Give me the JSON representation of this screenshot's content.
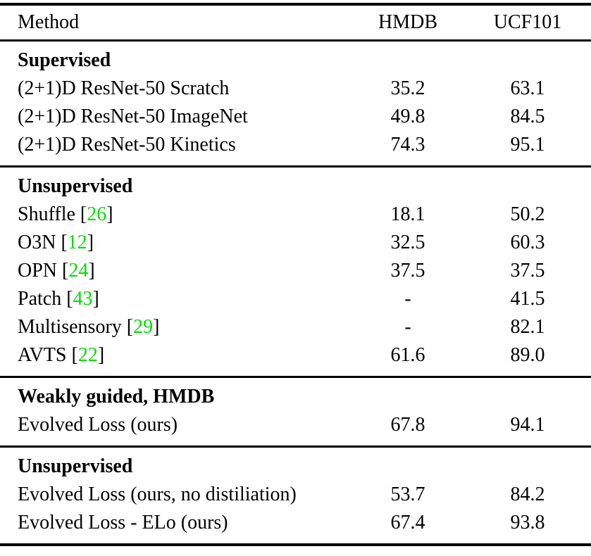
{
  "table": {
    "cite_open": " [",
    "cite_close": "]",
    "colors": {
      "citation_green": "#00E000",
      "text": "#000000",
      "background": "#FFFFFF"
    },
    "columns": {
      "method": "Method",
      "hmdb": "HMDB",
      "ucf": "UCF101"
    },
    "sections": [
      {
        "title": "Supervised",
        "rows": [
          {
            "method": "(2+1)D ResNet-50 Scratch",
            "hmdb": "35.2",
            "ucf": "63.1"
          },
          {
            "method": "(2+1)D ResNet-50 ImageNet",
            "hmdb": "49.8",
            "ucf": "84.5"
          },
          {
            "method": "(2+1)D ResNet-50 Kinetics",
            "hmdb": "74.3",
            "ucf": "95.1"
          }
        ]
      },
      {
        "title": "Unsupervised",
        "rows": [
          {
            "method": "Shuffle",
            "cite": "26",
            "hmdb": "18.1",
            "ucf": "50.2"
          },
          {
            "method": "O3N",
            "cite": "12",
            "hmdb": "32.5",
            "ucf": "60.3"
          },
          {
            "method": "OPN",
            "cite": "24",
            "hmdb": "37.5",
            "ucf": "37.5"
          },
          {
            "method": "Patch",
            "cite": "43",
            "hmdb": "-",
            "ucf": "41.5"
          },
          {
            "method": "Multisensory",
            "cite": "29",
            "hmdb": "-",
            "ucf": "82.1"
          },
          {
            "method": "AVTS",
            "cite": "22",
            "hmdb": "61.6",
            "ucf": "89.0"
          }
        ]
      },
      {
        "title": "Weakly guided, HMDB",
        "rows": [
          {
            "method": "Evolved Loss (ours)",
            "hmdb": "67.8",
            "ucf": "94.1"
          }
        ]
      },
      {
        "title": "Unsupervised",
        "rows": [
          {
            "method": "Evolved Loss (ours, no distiliation)",
            "hmdb": "53.7",
            "ucf": "84.2"
          },
          {
            "method": "Evolved Loss - ELo (ours)",
            "hmdb": "67.4",
            "ucf": "93.8"
          }
        ]
      }
    ]
  }
}
